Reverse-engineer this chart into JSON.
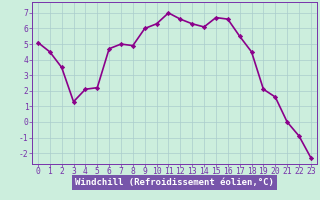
{
  "x": [
    0,
    1,
    2,
    3,
    4,
    5,
    6,
    7,
    8,
    9,
    10,
    11,
    12,
    13,
    14,
    15,
    16,
    17,
    18,
    19,
    20,
    21,
    22,
    23
  ],
  "y": [
    5.1,
    4.5,
    3.5,
    1.3,
    2.1,
    2.2,
    4.7,
    5.0,
    4.9,
    6.0,
    6.3,
    7.0,
    6.6,
    6.3,
    6.1,
    6.7,
    6.6,
    5.5,
    4.5,
    2.1,
    1.6,
    0.0,
    -0.9,
    -2.3
  ],
  "line_color": "#8B008B",
  "marker": "D",
  "marker_size": 2.2,
  "bg_color": "#cceedd",
  "grid_color": "#aacccc",
  "xlabel": "Windchill (Refroidissement éolien,°C)",
  "xlabel_color": "#ffffff",
  "xlabel_bg": "#7755aa",
  "xlim": [
    -0.5,
    23.5
  ],
  "ylim": [
    -2.7,
    7.7
  ],
  "yticks": [
    -2,
    -1,
    0,
    1,
    2,
    3,
    4,
    5,
    6,
    7
  ],
  "xticks": [
    0,
    1,
    2,
    3,
    4,
    5,
    6,
    7,
    8,
    9,
    10,
    11,
    12,
    13,
    14,
    15,
    16,
    17,
    18,
    19,
    20,
    21,
    22,
    23
  ],
  "tick_label_color": "#7733aa",
  "spine_color": "#7733aa",
  "line_width": 1.2,
  "tick_fontsize": 5.8,
  "xlabel_fontsize": 6.5
}
